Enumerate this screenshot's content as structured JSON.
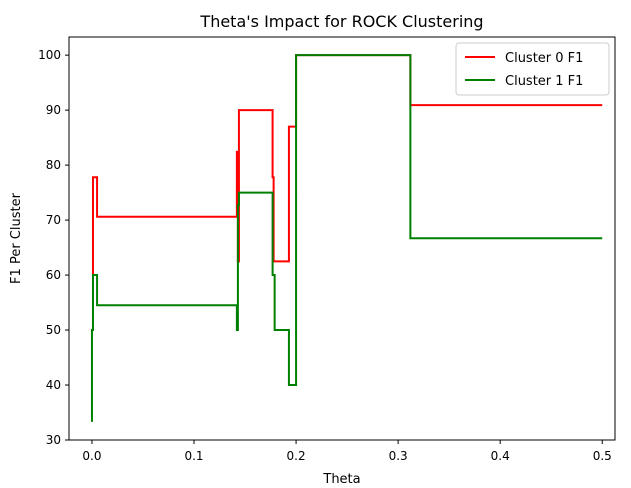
{
  "chart_data": {
    "type": "line",
    "title": "Theta's Impact for ROCK Clustering",
    "xlabel": "Theta",
    "ylabel": "F1 Per Cluster",
    "xlim": [
      -0.0225,
      0.5125
    ],
    "ylim": [
      30,
      103.3
    ],
    "xticks": [
      0.0,
      0.1,
      0.2,
      0.3,
      0.4,
      0.5
    ],
    "xtick_labels": [
      "0.0",
      "0.1",
      "0.2",
      "0.3",
      "0.4",
      "0.5"
    ],
    "yticks": [
      30,
      40,
      50,
      60,
      70,
      80,
      90,
      100
    ],
    "ytick_labels": [
      "30",
      "40",
      "50",
      "60",
      "70",
      "80",
      "90",
      "100"
    ],
    "grid": false,
    "legend_position": "top-right",
    "series": [
      {
        "name": "Cluster 0 F1",
        "color": "#ff0000",
        "x": [
          0.0,
          0.0,
          0.001,
          0.001,
          0.005,
          0.005,
          0.142,
          0.142,
          0.143,
          0.143,
          0.144,
          0.144,
          0.177,
          0.177,
          0.178,
          0.178,
          0.179,
          0.179,
          0.193,
          0.193,
          0.197,
          0.197,
          0.2,
          0.2,
          0.312,
          0.312,
          0.5
        ],
        "y": [
          60,
          60,
          60,
          77.8,
          77.8,
          70.6,
          70.6,
          82.4,
          82.4,
          62.5,
          62.5,
          90,
          90,
          77.8,
          77.8,
          62.5,
          62.5,
          62.5,
          62.5,
          87,
          87,
          87,
          87,
          100,
          100,
          90.9,
          90.9
        ]
      },
      {
        "name": "Cluster 1 F1",
        "color": "#008000",
        "x": [
          0.0,
          0.0,
          0.001,
          0.001,
          0.005,
          0.005,
          0.142,
          0.142,
          0.143,
          0.143,
          0.144,
          0.144,
          0.177,
          0.177,
          0.178,
          0.178,
          0.179,
          0.179,
          0.193,
          0.193,
          0.197,
          0.197,
          0.2,
          0.2,
          0.312,
          0.312,
          0.5
        ],
        "y": [
          33.3,
          50,
          50,
          60,
          60,
          54.5,
          54.5,
          50,
          50,
          72.7,
          72.7,
          75,
          75,
          60,
          60,
          60,
          60,
          50,
          50,
          40,
          40,
          40,
          40,
          100,
          100,
          66.7,
          66.7
        ]
      }
    ]
  }
}
